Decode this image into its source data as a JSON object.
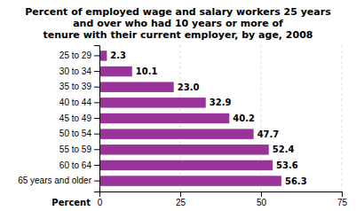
{
  "chart_data": {
    "type": "bar",
    "orientation": "horizontal",
    "title": "Percent of employed wage and salary workers 25 years\nand over who had 10 years or more of\ntenure with their current employer, by age, 2008",
    "categories": [
      "25 to 29",
      "30 to 34",
      "35 to 39",
      "40 to 44",
      "45 to 49",
      "50 to 54",
      "55 to 59",
      "60 to 64",
      "65 years and older"
    ],
    "values": [
      2.3,
      10.1,
      23.0,
      32.9,
      40.2,
      47.7,
      52.4,
      53.6,
      56.3
    ],
    "value_labels": [
      "2.3",
      "10.1",
      "23.0",
      "32.9",
      "40.2",
      "47.7",
      "52.4",
      "53.6",
      "56.3"
    ],
    "color": "#993399",
    "xlim": [
      0,
      75
    ],
    "xticks": [
      0,
      25,
      50,
      75
    ],
    "xlabel": "Percent",
    "grid": true,
    "data_labels": true
  }
}
